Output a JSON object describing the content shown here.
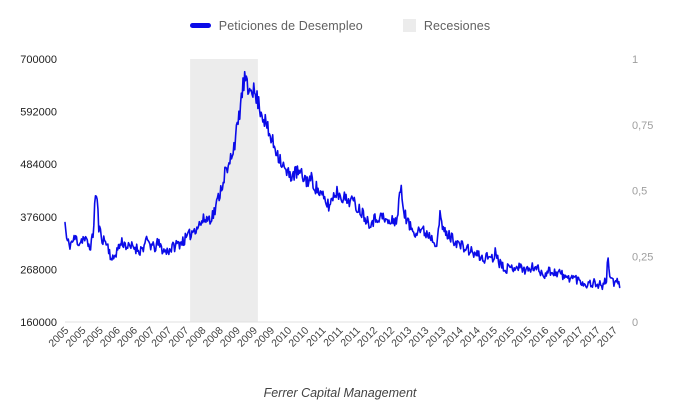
{
  "caption": "Ferrer Capital Management",
  "colors": {
    "line": "#0b0be8",
    "recession_band": "#ececec",
    "axis_left_text": "#212121",
    "axis_right_text": "#9e9e9e",
    "axis_x_text": "#424242",
    "legend_text": "#616161",
    "baseline": "#e0e0e0",
    "background": "#ffffff"
  },
  "chart_data": {
    "type": "line",
    "title": "",
    "caption": "Ferrer Capital Management",
    "legend": [
      {
        "label": "Peticiones de Desempleo",
        "swatch": "blue-line"
      },
      {
        "label": "Recesiones",
        "swatch": "gray-box"
      }
    ],
    "legend_position": "top-center",
    "grid": false,
    "x_axis": {
      "range": [
        2005.0,
        2017.95
      ],
      "tick_years": [
        2005.1,
        2005.5,
        2005.9,
        2006.3,
        2006.7,
        2007.1,
        2007.5,
        2007.9,
        2008.3,
        2008.7,
        2009.1,
        2009.5,
        2009.9,
        2010.3,
        2010.7,
        2011.1,
        2011.5,
        2011.9,
        2012.3,
        2012.7,
        2013.1,
        2013.5,
        2013.9,
        2014.3,
        2014.7,
        2015.1,
        2015.5,
        2015.9,
        2016.3,
        2016.7,
        2017.1,
        2017.5,
        2017.9
      ],
      "tick_labels": [
        "2005",
        "2005",
        "2005",
        "2006",
        "2006",
        "2007",
        "2007",
        "2007",
        "2008",
        "2008",
        "2009",
        "2009",
        "2009",
        "2010",
        "2010",
        "2011",
        "2011",
        "2011",
        "2012",
        "2012",
        "2013",
        "2013",
        "2013",
        "2014",
        "2014",
        "2015",
        "2015",
        "2015",
        "2016",
        "2016",
        "2017",
        "2017",
        "2017"
      ],
      "label_rotation_deg": -45
    },
    "y_axis_left": {
      "range": [
        160000,
        700000
      ],
      "tick_values": [
        700000,
        592000,
        484000,
        376000,
        268000,
        160000
      ],
      "tick_labels": [
        "700000",
        "592000",
        "484000",
        "376000",
        "268000",
        "160000"
      ]
    },
    "y_axis_right": {
      "range": [
        0,
        1
      ],
      "tick_values": [
        1,
        0.75,
        0.5,
        0.25,
        0
      ],
      "tick_labels": [
        "1",
        "0,75",
        "0,5",
        "0,25",
        "0"
      ]
    },
    "series": [
      {
        "name": "Peticiones de Desempleo",
        "axis": "left",
        "color": "#0b0be8",
        "sampling": "weekly",
        "values_scale": 1000,
        "noise": {
          "seed": 11,
          "base": 3500,
          "scale": 0.026
        },
        "points": [
          [
            2005.0,
            364
          ],
          [
            2005.04,
            328
          ],
          [
            2005.1,
            318
          ],
          [
            2005.17,
            325
          ],
          [
            2005.25,
            333
          ],
          [
            2005.33,
            322
          ],
          [
            2005.42,
            333
          ],
          [
            2005.5,
            325
          ],
          [
            2005.58,
            314
          ],
          [
            2005.65,
            333
          ],
          [
            2005.71,
            424
          ],
          [
            2005.75,
            410
          ],
          [
            2005.79,
            352
          ],
          [
            2005.88,
            330
          ],
          [
            2005.96,
            324
          ],
          [
            2006.04,
            305
          ],
          [
            2006.1,
            283
          ],
          [
            2006.17,
            300
          ],
          [
            2006.25,
            313
          ],
          [
            2006.33,
            325
          ],
          [
            2006.42,
            318
          ],
          [
            2006.5,
            311
          ],
          [
            2006.58,
            316
          ],
          [
            2006.67,
            311
          ],
          [
            2006.75,
            307
          ],
          [
            2006.83,
            314
          ],
          [
            2006.92,
            327
          ],
          [
            2007.0,
            318
          ],
          [
            2007.08,
            311
          ],
          [
            2007.17,
            322
          ],
          [
            2007.25,
            312
          ],
          [
            2007.33,
            304
          ],
          [
            2007.42,
            308
          ],
          [
            2007.5,
            312
          ],
          [
            2007.58,
            318
          ],
          [
            2007.67,
            322
          ],
          [
            2007.75,
            327
          ],
          [
            2007.83,
            331
          ],
          [
            2007.92,
            340
          ],
          [
            2008.0,
            349
          ],
          [
            2008.08,
            356
          ],
          [
            2008.17,
            363
          ],
          [
            2008.25,
            371
          ],
          [
            2008.33,
            372
          ],
          [
            2008.42,
            376
          ],
          [
            2008.5,
            389
          ],
          [
            2008.58,
            416
          ],
          [
            2008.67,
            443
          ],
          [
            2008.75,
            473
          ],
          [
            2008.79,
            464
          ],
          [
            2008.87,
            499
          ],
          [
            2008.96,
            530
          ],
          [
            2009.04,
            566
          ],
          [
            2009.1,
            610
          ],
          [
            2009.15,
            640
          ],
          [
            2009.2,
            662
          ],
          [
            2009.24,
            643
          ],
          [
            2009.28,
            628
          ],
          [
            2009.33,
            653
          ],
          [
            2009.4,
            634
          ],
          [
            2009.46,
            620
          ],
          [
            2009.5,
            615
          ],
          [
            2009.58,
            592
          ],
          [
            2009.67,
            572
          ],
          [
            2009.75,
            548
          ],
          [
            2009.83,
            532
          ],
          [
            2009.92,
            515
          ],
          [
            2010.0,
            500
          ],
          [
            2010.08,
            482
          ],
          [
            2010.17,
            465
          ],
          [
            2010.25,
            462
          ],
          [
            2010.33,
            463
          ],
          [
            2010.42,
            468
          ],
          [
            2010.5,
            462
          ],
          [
            2010.58,
            455
          ],
          [
            2010.67,
            450
          ],
          [
            2010.75,
            453
          ],
          [
            2010.83,
            440
          ],
          [
            2010.92,
            428
          ],
          [
            2011.0,
            418
          ],
          [
            2011.08,
            405
          ],
          [
            2011.17,
            398
          ],
          [
            2011.25,
            418
          ],
          [
            2011.33,
            428
          ],
          [
            2011.42,
            421
          ],
          [
            2011.5,
            417
          ],
          [
            2011.58,
            408
          ],
          [
            2011.67,
            413
          ],
          [
            2011.75,
            403
          ],
          [
            2011.83,
            395
          ],
          [
            2011.92,
            387
          ],
          [
            2012.0,
            377
          ],
          [
            2012.08,
            365
          ],
          [
            2012.17,
            368
          ],
          [
            2012.25,
            372
          ],
          [
            2012.33,
            378
          ],
          [
            2012.42,
            374
          ],
          [
            2012.5,
            367
          ],
          [
            2012.58,
            363
          ],
          [
            2012.67,
            368
          ],
          [
            2012.75,
            372
          ],
          [
            2012.83,
            438
          ],
          [
            2012.88,
            404
          ],
          [
            2012.96,
            372
          ],
          [
            2013.0,
            364
          ],
          [
            2013.08,
            352
          ],
          [
            2013.17,
            346
          ],
          [
            2013.25,
            352
          ],
          [
            2013.33,
            348
          ],
          [
            2013.42,
            343
          ],
          [
            2013.5,
            340
          ],
          [
            2013.58,
            331
          ],
          [
            2013.67,
            324
          ],
          [
            2013.75,
            376
          ],
          [
            2013.8,
            357
          ],
          [
            2013.88,
            341
          ],
          [
            2013.96,
            337
          ],
          [
            2014.0,
            335
          ],
          [
            2014.08,
            329
          ],
          [
            2014.17,
            321
          ],
          [
            2014.25,
            316
          ],
          [
            2014.33,
            312
          ],
          [
            2014.42,
            308
          ],
          [
            2014.5,
            303
          ],
          [
            2014.58,
            299
          ],
          [
            2014.67,
            295
          ],
          [
            2014.75,
            289
          ],
          [
            2014.83,
            293
          ],
          [
            2014.92,
            296
          ],
          [
            2015.0,
            291
          ],
          [
            2015.06,
            308
          ],
          [
            2015.13,
            283
          ],
          [
            2015.21,
            277
          ],
          [
            2015.29,
            271
          ],
          [
            2015.38,
            269
          ],
          [
            2015.46,
            273
          ],
          [
            2015.54,
            276
          ],
          [
            2015.63,
            271
          ],
          [
            2015.71,
            269
          ],
          [
            2015.79,
            267
          ],
          [
            2015.88,
            269
          ],
          [
            2015.96,
            276
          ],
          [
            2016.04,
            267
          ],
          [
            2016.13,
            261
          ],
          [
            2016.21,
            259
          ],
          [
            2016.29,
            265
          ],
          [
            2016.38,
            263
          ],
          [
            2016.46,
            261
          ],
          [
            2016.54,
            263
          ],
          [
            2016.63,
            253
          ],
          [
            2016.71,
            249
          ],
          [
            2016.79,
            253
          ],
          [
            2016.88,
            251
          ],
          [
            2016.96,
            247
          ],
          [
            2017.04,
            243
          ],
          [
            2017.13,
            239
          ],
          [
            2017.21,
            237
          ],
          [
            2017.29,
            241
          ],
          [
            2017.38,
            239
          ],
          [
            2017.46,
            237
          ],
          [
            2017.54,
            235
          ],
          [
            2017.63,
            243
          ],
          [
            2017.67,
            293
          ],
          [
            2017.71,
            260
          ],
          [
            2017.79,
            239
          ],
          [
            2017.88,
            241
          ],
          [
            2017.95,
            233
          ]
        ]
      },
      {
        "name": "Recesiones",
        "axis": "right",
        "type": "band",
        "color": "#ececec",
        "intervals": [
          [
            2007.92,
            2009.5
          ]
        ],
        "value_inside": 1,
        "value_outside": 0
      }
    ]
  }
}
